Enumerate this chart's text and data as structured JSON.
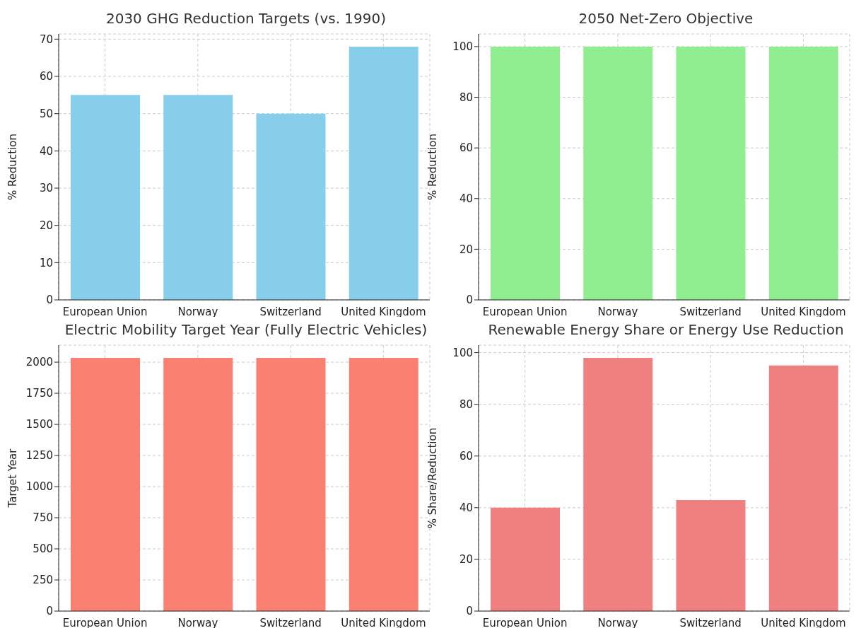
{
  "chart_data": [
    {
      "type": "bar",
      "title": "2030 GHG Reduction Targets (vs. 1990)",
      "ylabel": "% Reduction",
      "categories": [
        "European Union",
        "Norway",
        "Switzerland",
        "United Kingdom"
      ],
      "values": [
        55,
        55,
        50,
        68
      ],
      "color": "#87ceeb",
      "ylim": [
        0,
        71.4
      ],
      "yticks": [
        0,
        10,
        20,
        30,
        40,
        50,
        60,
        70
      ],
      "grid": true
    },
    {
      "type": "bar",
      "title": "2050 Net-Zero Objective",
      "ylabel": "% Reduction",
      "categories": [
        "European Union",
        "Norway",
        "Switzerland",
        "United Kingdom"
      ],
      "values": [
        100,
        100,
        100,
        100
      ],
      "color": "#90ee90",
      "ylim": [
        0,
        105
      ],
      "yticks": [
        0,
        20,
        40,
        60,
        80,
        100
      ],
      "grid": true
    },
    {
      "type": "bar",
      "title": "Electric Mobility Target Year (Fully Electric Vehicles)",
      "ylabel": "Target Year",
      "categories": [
        "European Union",
        "Norway",
        "Switzerland",
        "United Kingdom"
      ],
      "values": [
        2035,
        2035,
        2035,
        2035
      ],
      "color": "#fa8072",
      "ylim": [
        0,
        2136.75
      ],
      "yticks": [
        0,
        250,
        500,
        750,
        1000,
        1250,
        1500,
        1750,
        2000
      ],
      "grid": true
    },
    {
      "type": "bar",
      "title": "Renewable Energy Share or Energy Use Reduction",
      "ylabel": "% Share/Reduction",
      "categories": [
        "European Union",
        "Norway",
        "Switzerland",
        "United Kingdom"
      ],
      "values": [
        40,
        98,
        43,
        95
      ],
      "color": "#f08080",
      "ylim": [
        0,
        102.9
      ],
      "yticks": [
        0,
        20,
        40,
        60,
        80,
        100
      ],
      "grid": true
    }
  ]
}
